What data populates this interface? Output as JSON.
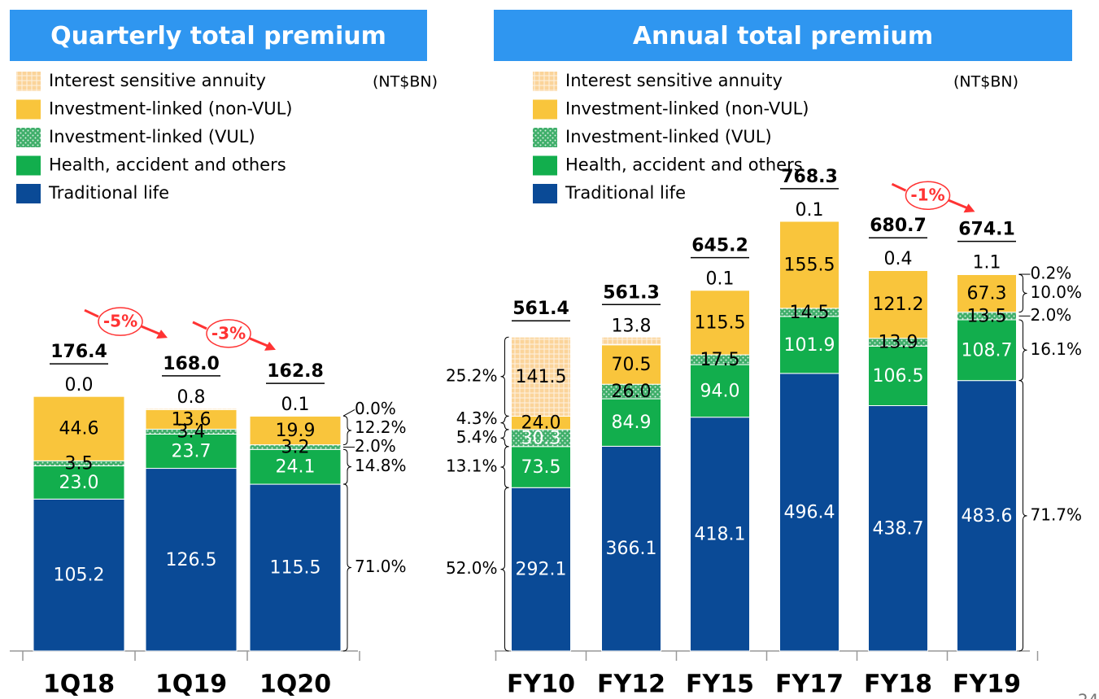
{
  "chart_data": [
    {
      "type": "bar",
      "stacked": true,
      "title": "Quarterly total premium",
      "unit_label": "(NT$BN)",
      "categories": [
        "1Q18",
        "1Q19",
        "1Q20"
      ],
      "series": [
        {
          "name": "Traditional life",
          "color": "#0A4A96",
          "values": [
            105.2,
            126.5,
            115.5
          ],
          "value_labels": [
            "105.2",
            "126.5",
            "115.5"
          ],
          "shares": [
            null,
            null,
            71.0
          ],
          "share_labels": [
            null,
            null,
            "71.0%"
          ]
        },
        {
          "name": "Health, accident and others",
          "color": "#12AE4D",
          "values": [
            23.0,
            23.7,
            24.1
          ],
          "value_labels": [
            "23.0",
            "23.7",
            "24.1"
          ],
          "shares": [
            null,
            null,
            14.8
          ],
          "share_labels": [
            null,
            null,
            "14.8%"
          ]
        },
        {
          "name": "Investment-linked (VUL)",
          "color": "#3FAE6A",
          "pattern": "dots",
          "values": [
            3.5,
            3.4,
            3.2
          ],
          "value_labels": [
            "3.5",
            "3.4",
            "3.2"
          ],
          "shares": [
            null,
            null,
            2.0
          ],
          "share_labels": [
            null,
            null,
            "2.0%"
          ]
        },
        {
          "name": "Investment-linked (non-VUL)",
          "color": "#F9C53C",
          "values": [
            44.6,
            13.6,
            19.9
          ],
          "value_labels": [
            "44.6",
            "13.6",
            "19.9"
          ],
          "shares": [
            null,
            null,
            12.2
          ],
          "share_labels": [
            null,
            null,
            "12.2%"
          ]
        },
        {
          "name": "Interest sensitive annuity",
          "color": "#FBD49A",
          "pattern": "crosshatch",
          "values": [
            0.0,
            0.8,
            0.1
          ],
          "value_labels": [
            "0.0",
            "0.8",
            "0.1"
          ],
          "shares": [
            null,
            null,
            0.0
          ],
          "share_labels": [
            null,
            null,
            "0.0%"
          ]
        }
      ],
      "totals": [
        176.4,
        168.0,
        162.8
      ],
      "total_labels": [
        "176.4",
        "168.0",
        "162.8"
      ],
      "annotations": [
        {
          "text": "-5%",
          "from": "1Q18",
          "to": "1Q19"
        },
        {
          "text": "-3%",
          "from": "1Q19",
          "to": "1Q20"
        }
      ]
    },
    {
      "type": "bar",
      "stacked": true,
      "title": "Annual total premium",
      "unit_label": "(NT$BN)",
      "categories": [
        "FY10",
        "FY12",
        "FY15",
        "FY17",
        "FY18",
        "FY19"
      ],
      "series": [
        {
          "name": "Traditional life",
          "color": "#0A4A96",
          "values": [
            292.1,
            366.1,
            418.1,
            496.4,
            438.7,
            483.6
          ],
          "value_labels": [
            "292.1",
            "366.1",
            "418.1",
            "496.4",
            "438.7",
            "483.6"
          ],
          "shares": [
            52.0,
            null,
            null,
            null,
            null,
            71.7
          ],
          "share_labels": [
            "52.0%",
            null,
            null,
            null,
            null,
            "71.7%"
          ]
        },
        {
          "name": "Health, accident and others",
          "color": "#12AE4D",
          "values": [
            73.5,
            84.9,
            94.0,
            101.9,
            106.5,
            108.7
          ],
          "value_labels": [
            "73.5",
            "84.9",
            "94.0",
            "101.9",
            "106.5",
            "108.7"
          ],
          "shares": [
            13.1,
            null,
            null,
            null,
            null,
            16.1
          ],
          "share_labels": [
            "13.1%",
            null,
            null,
            null,
            null,
            "16.1%"
          ]
        },
        {
          "name": "Investment-linked (VUL)",
          "color": "#3FAE6A",
          "pattern": "dots",
          "values": [
            30.3,
            26.0,
            17.5,
            14.5,
            13.9,
            13.5
          ],
          "value_labels": [
            "30.3",
            "26.0",
            "17.5",
            "14.5",
            "13.9",
            "13.5"
          ],
          "shares": [
            5.4,
            null,
            null,
            null,
            null,
            2.0
          ],
          "share_labels": [
            "5.4%",
            null,
            null,
            null,
            null,
            "2.0%"
          ]
        },
        {
          "name": "Investment-linked (non-VUL)",
          "color": "#F9C53C",
          "values": [
            24.0,
            70.5,
            115.5,
            155.5,
            121.2,
            67.3
          ],
          "value_labels": [
            "24.0",
            "70.5",
            "115.5",
            "155.5",
            "121.2",
            "67.3"
          ],
          "shares": [
            4.3,
            null,
            null,
            null,
            null,
            10.0
          ],
          "share_labels": [
            "4.3%",
            null,
            null,
            null,
            null,
            "10.0%"
          ]
        },
        {
          "name": "Interest sensitive annuity",
          "color": "#FBD49A",
          "pattern": "crosshatch",
          "values": [
            141.5,
            13.8,
            0.1,
            0.1,
            0.4,
            1.1
          ],
          "value_labels": [
            "141.5",
            "13.8",
            "0.1",
            "0.1",
            "0.4",
            "1.1"
          ],
          "shares": [
            25.2,
            null,
            null,
            null,
            null,
            0.2
          ],
          "share_labels": [
            "25.2%",
            null,
            null,
            null,
            null,
            "0.2%"
          ]
        }
      ],
      "totals": [
        561.4,
        561.3,
        645.2,
        768.3,
        680.7,
        674.1
      ],
      "total_labels": [
        "561.4",
        "561.3",
        "645.2",
        "768.3",
        "680.7",
        "674.1"
      ],
      "annotations": [
        {
          "text": "-1%",
          "from": "FY18",
          "to": "FY19"
        }
      ]
    }
  ],
  "page_number": "24"
}
